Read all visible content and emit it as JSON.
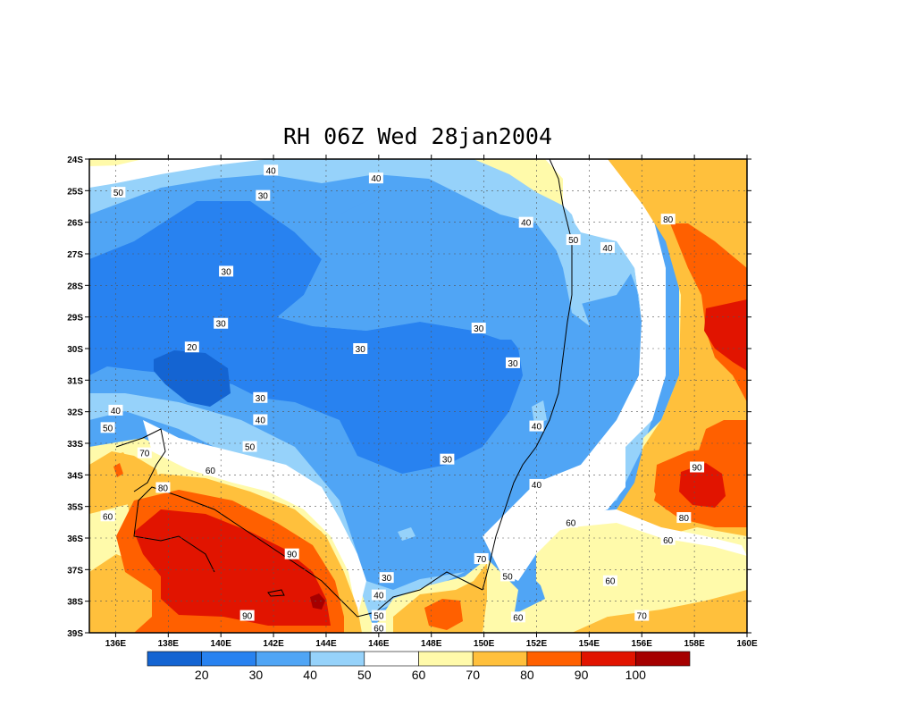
{
  "title": "RH 06Z Wed 28jan2004",
  "lat_labels": [
    "24S",
    "25S",
    "26S",
    "27S",
    "28S",
    "29S",
    "30S",
    "31S",
    "32S",
    "33S",
    "34S",
    "35S",
    "36S",
    "37S",
    "38S",
    "39S"
  ],
  "lon_labels": [
    "136E",
    "138E",
    "140E",
    "142E",
    "144E",
    "146E",
    "148E",
    "150E",
    "152E",
    "154E",
    "156E",
    "158E",
    "160E"
  ],
  "colorbar": {
    "colors": [
      "#1464d2",
      "#2882f0",
      "#50a5f5",
      "#96d2fa",
      "#ffffff",
      "#fffaaa",
      "#ffc03c",
      "#ff6000",
      "#e11400",
      "#a50000"
    ],
    "labels": [
      "20",
      "30",
      "40",
      "50",
      "60",
      "70",
      "80",
      "90",
      "100"
    ]
  },
  "contour_labels": [
    {
      "text": "40",
      "lon": 141.9,
      "lat": 24.35
    },
    {
      "text": "40",
      "lon": 145.9,
      "lat": 24.6
    },
    {
      "text": "50",
      "lon": 136.1,
      "lat": 25.05
    },
    {
      "text": "30",
      "lon": 141.6,
      "lat": 25.15
    },
    {
      "text": "40",
      "lon": 151.6,
      "lat": 26.0
    },
    {
      "text": "50",
      "lon": 153.4,
      "lat": 26.55
    },
    {
      "text": "40",
      "lon": 154.7,
      "lat": 26.8
    },
    {
      "text": "80",
      "lon": 157.0,
      "lat": 25.9
    },
    {
      "text": "30",
      "lon": 140.2,
      "lat": 27.55
    },
    {
      "text": "30",
      "lon": 140.0,
      "lat": 29.2
    },
    {
      "text": "30",
      "lon": 149.8,
      "lat": 29.35
    },
    {
      "text": "20",
      "lon": 138.9,
      "lat": 29.95
    },
    {
      "text": "30",
      "lon": 145.3,
      "lat": 30.0
    },
    {
      "text": "30",
      "lon": 151.1,
      "lat": 30.45
    },
    {
      "text": "30",
      "lon": 141.5,
      "lat": 31.55
    },
    {
      "text": "40",
      "lon": 136.0,
      "lat": 31.95
    },
    {
      "text": "40",
      "lon": 141.5,
      "lat": 32.25
    },
    {
      "text": "40",
      "lon": 152.0,
      "lat": 32.45
    },
    {
      "text": "50",
      "lon": 135.7,
      "lat": 32.5
    },
    {
      "text": "50",
      "lon": 141.1,
      "lat": 33.1
    },
    {
      "text": "70",
      "lon": 137.1,
      "lat": 33.3
    },
    {
      "text": "30",
      "lon": 148.6,
      "lat": 33.5
    },
    {
      "text": "60",
      "lon": 139.6,
      "lat": 33.85
    },
    {
      "text": "90",
      "lon": 158.1,
      "lat": 33.75
    },
    {
      "text": "40",
      "lon": 152.0,
      "lat": 34.3
    },
    {
      "text": "80",
      "lon": 137.8,
      "lat": 34.4
    },
    {
      "text": "60",
      "lon": 135.7,
      "lat": 35.3
    },
    {
      "text": "60",
      "lon": 153.3,
      "lat": 35.5
    },
    {
      "text": "80",
      "lon": 157.6,
      "lat": 35.35
    },
    {
      "text": "60",
      "lon": 157.0,
      "lat": 36.05
    },
    {
      "text": "90",
      "lon": 142.7,
      "lat": 36.5
    },
    {
      "text": "70",
      "lon": 149.9,
      "lat": 36.65
    },
    {
      "text": "50",
      "lon": 150.9,
      "lat": 37.2
    },
    {
      "text": "30",
      "lon": 146.3,
      "lat": 37.25
    },
    {
      "text": "60",
      "lon": 154.8,
      "lat": 37.35
    },
    {
      "text": "40",
      "lon": 146.0,
      "lat": 37.8
    },
    {
      "text": "50",
      "lon": 146.0,
      "lat": 38.45
    },
    {
      "text": "70",
      "lon": 156.0,
      "lat": 38.45
    },
    {
      "text": "60",
      "lon": 151.3,
      "lat": 38.5
    },
    {
      "text": "90",
      "lon": 141.0,
      "lat": 38.45
    },
    {
      "text": "60",
      "lon": 146.0,
      "lat": 38.85
    }
  ]
}
